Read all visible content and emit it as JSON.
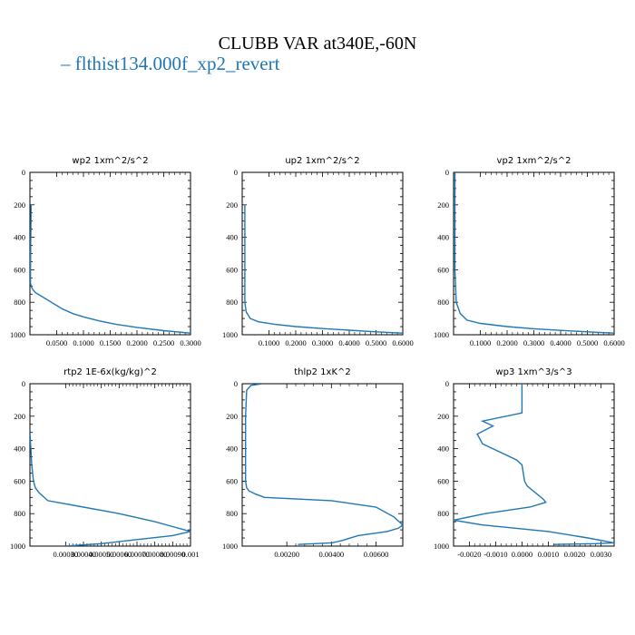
{
  "title": "CLUBB VAR at340E,-60N",
  "legend": {
    "label": "flthist134.000f_xp2_revert",
    "color": "#1f77b4"
  },
  "chart_data": [
    {
      "type": "line",
      "title": "wp2   1xm^2/s^2",
      "xlim": [
        0,
        0.3
      ],
      "ylim": [
        1000,
        0
      ],
      "xticks": [
        0.05,
        0.1,
        0.15,
        0.2,
        0.25,
        0.3
      ],
      "xticklabels": [
        "0.0500",
        "0.1000",
        "0.1500",
        "0.2000",
        "0.2500",
        "0.3000"
      ],
      "yticks": [
        0,
        200,
        400,
        600,
        800,
        1000
      ],
      "series": [
        {
          "x": [
            0.002,
            0.002,
            0.0015,
            0.001,
            0.001,
            0.002,
            0.005,
            0.01,
            0.02,
            0.04,
            0.06,
            0.08,
            0.1,
            0.13,
            0.16,
            0.2,
            0.25,
            0.3
          ],
          "y": [
            200,
            250,
            400,
            600,
            680,
            700,
            720,
            740,
            760,
            800,
            840,
            870,
            890,
            915,
            935,
            955,
            975,
            990
          ]
        }
      ]
    },
    {
      "type": "line",
      "title": "up2   1xm^2/s^2",
      "xlim": [
        0,
        0.6
      ],
      "ylim": [
        1000,
        0
      ],
      "xticks": [
        0.1,
        0.2,
        0.3,
        0.4,
        0.5,
        0.6
      ],
      "xticklabels": [
        "0.1000",
        "0.2000",
        "0.3000",
        "0.4000",
        "0.5000",
        "0.6000"
      ],
      "yticks": [
        0,
        200,
        400,
        600,
        800,
        1000
      ],
      "series": [
        {
          "x": [
            0.01,
            0.01,
            0.01,
            0.01,
            0.015,
            0.03,
            0.06,
            0.12,
            0.2,
            0.3,
            0.4,
            0.5,
            0.6
          ],
          "y": [
            200,
            400,
            600,
            800,
            860,
            900,
            920,
            935,
            950,
            962,
            972,
            982,
            990
          ]
        }
      ]
    },
    {
      "type": "line",
      "title": "vp2   1xm^2/s^2",
      "xlim": [
        0,
        0.6
      ],
      "ylim": [
        1000,
        0
      ],
      "xticks": [
        0.1,
        0.2,
        0.3,
        0.4,
        0.5,
        0.6
      ],
      "xticklabels": [
        "0.1000",
        "0.2000",
        "0.3000",
        "0.4000",
        "0.5000",
        "0.6000"
      ],
      "yticks": [
        0,
        200,
        400,
        600,
        800,
        1000
      ],
      "series": [
        {
          "x": [
            0.005,
            0.005,
            0.005,
            0.005,
            0.01,
            0.025,
            0.05,
            0.1,
            0.2,
            0.3,
            0.4,
            0.5,
            0.6
          ],
          "y": [
            0,
            200,
            400,
            600,
            800,
            870,
            910,
            930,
            950,
            963,
            973,
            982,
            990
          ]
        }
      ]
    },
    {
      "type": "line",
      "title": "rtp2   1E-6x(kg/kg)^2",
      "xlim": [
        0.0001,
        0.001
      ],
      "ylim": [
        1000,
        0
      ],
      "xticks": [
        0.0003,
        0.0004,
        0.0005,
        0.0006,
        0.0007,
        0.0008,
        0.0009,
        0.001
      ],
      "xticklabels": [
        "0.00030",
        "0.00040",
        "0.00050",
        "0.00060",
        "0.00070",
        "0.00080",
        "0.00090",
        "0.001"
      ],
      "yticks": [
        0,
        200,
        400,
        600,
        800,
        1000
      ],
      "series": [
        {
          "x": [
            0.0001,
            0.00011,
            0.00012,
            0.00013,
            0.00015,
            0.0002,
            0.0004,
            0.0006,
            0.0008,
            0.0009,
            0.001,
            0.0009,
            0.0007,
            0.0005,
            0.0003
          ],
          "y": [
            300,
            500,
            600,
            640,
            670,
            720,
            760,
            800,
            850,
            880,
            910,
            935,
            960,
            985,
            1000
          ]
        }
      ]
    },
    {
      "type": "line",
      "title": "thlp2   1xK^2",
      "xlim": [
        0,
        0.0072
      ],
      "ylim": [
        1000,
        0
      ],
      "xticks": [
        0.002,
        0.004,
        0.006
      ],
      "xticklabels": [
        "0.00200",
        "0.00400",
        "0.00600"
      ],
      "yticks": [
        0,
        200,
        400,
        600,
        800,
        1000
      ],
      "series": [
        {
          "x": [
            0.0009,
            0.0004,
            0.0002,
            0.00015,
            0.00015,
            0.00015,
            0.0002,
            0.0003,
            0.0006,
            0.001,
            0.004,
            0.006,
            0.0068,
            0.0072,
            0.007,
            0.0065,
            0.0052,
            0.0045,
            0.0042,
            0.004,
            0.0025
          ],
          "y": [
            0,
            10,
            40,
            200,
            400,
            600,
            640,
            660,
            680,
            700,
            720,
            760,
            820,
            870,
            890,
            910,
            935,
            965,
            975,
            980,
            990
          ]
        }
      ]
    },
    {
      "type": "line",
      "title": "wp3   1xm^3/s^3",
      "xlim": [
        -0.0026,
        0.0035
      ],
      "ylim": [
        1000,
        0
      ],
      "xticks": [
        -0.002,
        -0.001,
        0.0,
        0.001,
        0.002,
        0.003
      ],
      "xticklabels": [
        "-0.0020",
        "-0.0010",
        "0.0000",
        "0.0010",
        "0.0020",
        "0.0030"
      ],
      "yticks": [
        0,
        200,
        400,
        600,
        800,
        1000
      ],
      "series": [
        {
          "x": [
            0.0,
            0.0,
            -0.0015,
            -0.0011,
            -0.0017,
            -0.0015,
            -0.0002,
            0.0,
            0.0001,
            0.0002,
            0.0008,
            0.0009,
            0.0003,
            -0.0014,
            -0.0026,
            -0.0015,
            0.001,
            0.0025,
            0.0035,
            0.0028,
            0.0012
          ],
          "y": [
            0,
            180,
            230,
            260,
            310,
            370,
            470,
            500,
            600,
            630,
            710,
            730,
            760,
            800,
            840,
            870,
            910,
            950,
            980,
            985,
            990
          ]
        }
      ]
    }
  ]
}
